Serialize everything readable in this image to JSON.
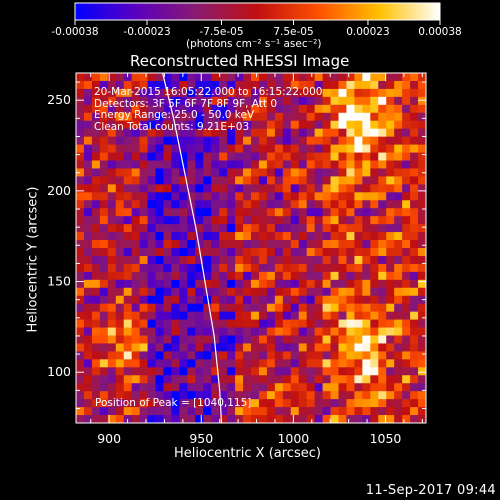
{
  "colorbar": {
    "ticks": [
      "-0.00038",
      "-0.00023",
      "-7.5e-05",
      "7.5e-05",
      "0.00023",
      "0.00038"
    ],
    "tick_values": [
      -0.00038,
      -0.00023,
      -7.5e-05,
      7.5e-05,
      0.00023,
      0.00038
    ],
    "range": [
      -0.00038,
      0.00038
    ],
    "units_label": "(photons cm⁻² s⁻¹ asec⁻²)",
    "colors": [
      "#0000ff",
      "#5a00c0",
      "#8a1a70",
      "#c01010",
      "#ff5000",
      "#ffc000",
      "#ffffff"
    ]
  },
  "chart_data": {
    "type": "heatmap",
    "title": "Reconstructed RHESSI Image",
    "xlabel": "Heliocentric X (arcsec)",
    "ylabel": "Heliocentric Y (arcsec)",
    "xlim": [
      882,
      1072
    ],
    "ylim": [
      72,
      265
    ],
    "xticks": [
      900,
      950,
      1000,
      1050
    ],
    "yticks": [
      100,
      150,
      200,
      250
    ],
    "annotations": {
      "time": "20-Mar-2015 16:05:22.000 to 16:15:22.000",
      "detectors": "Detectors: 3F 5F 6F 7F 8F 9F, Att 0",
      "energy": "Energy Range: 25.0 - 50.0 keV",
      "clean": "Clean     Total counts: 9.21E+03",
      "peak": "Position of Peak = [1040,115]"
    },
    "peak": [
      1040,
      115
    ],
    "limb": [
      [
        929,
        265
      ],
      [
        935,
        240
      ],
      [
        941,
        210
      ],
      [
        947,
        180
      ],
      [
        952,
        150
      ],
      [
        957,
        120
      ],
      [
        960,
        90
      ],
      [
        961,
        72
      ]
    ]
  },
  "timestamp": "11-Sep-2017 09:44"
}
